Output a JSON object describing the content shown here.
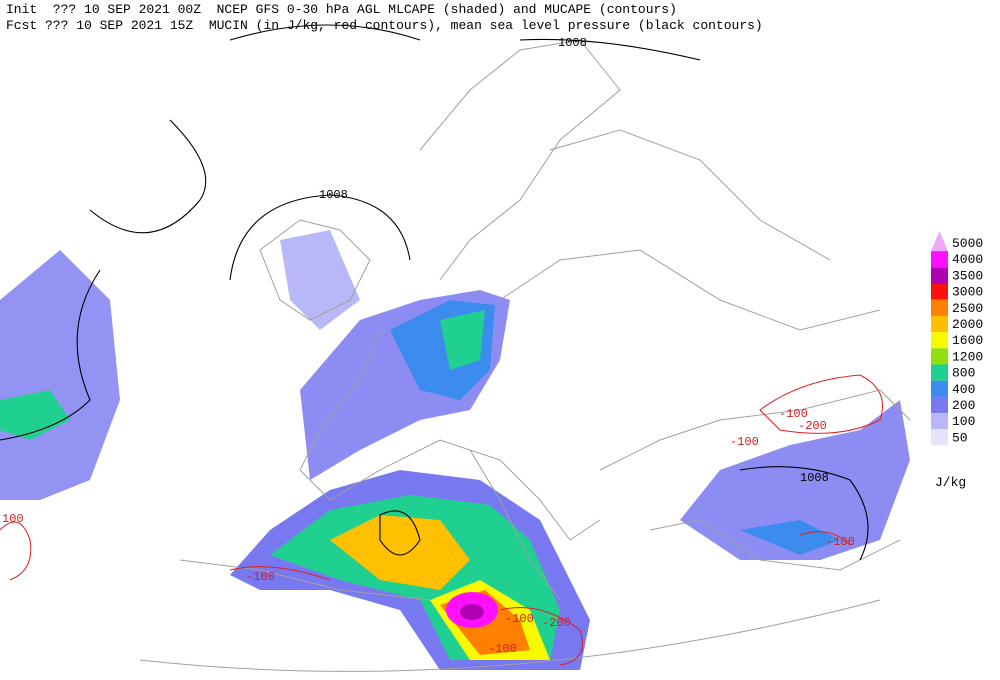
{
  "header": {
    "line1": "Init  ??? 10 SEP 2021 00Z  NCEP GFS 0-30 hPa AGL MLCAPE (shaded) and MUCAPE (contours)",
    "line2": "Fcst ??? 10 SEP 2021 15Z  MUCIN (in J/kg, red contours), mean sea level pressure (black contours)"
  },
  "legend": {
    "unit": "J/kg",
    "levels": [
      {
        "label": "5000",
        "color": "#f0a8f8"
      },
      {
        "label": "4000",
        "color": "#ff10ff"
      },
      {
        "label": "3500",
        "color": "#b000b4"
      },
      {
        "label": "3000",
        "color": "#ff1010"
      },
      {
        "label": "2500",
        "color": "#ff8000"
      },
      {
        "label": "2000",
        "color": "#ffc000"
      },
      {
        "label": "1600",
        "color": "#f8f800"
      },
      {
        "label": "1200",
        "color": "#90e010"
      },
      {
        "label": "800",
        "color": "#20d090"
      },
      {
        "label": "400",
        "color": "#3c8cf0"
      },
      {
        "label": "200",
        "color": "#7878f0"
      },
      {
        "label": "100",
        "color": "#b8b8f8"
      },
      {
        "label": "50",
        "color": "#e4e4fa"
      }
    ]
  },
  "contour_labels": [
    "1008",
    "1008",
    "1008",
    "-100",
    "-200",
    "-100",
    "100",
    "-100",
    "-100",
    "-200",
    "-100",
    "-100"
  ]
}
